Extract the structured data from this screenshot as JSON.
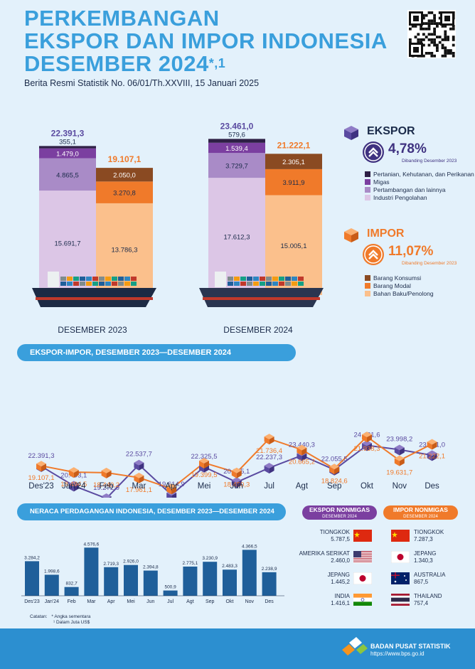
{
  "header": {
    "title_line1": "PERKEMBANGAN",
    "title_line2": "EKSPOR DAN IMPOR INDONESIA",
    "title_line3": "DESEMBER 2024",
    "title_sup": "*,1",
    "subtitle": "Berita Resmi Statistik No. 06/01/Th.XXVIII, 15 Januari 2025"
  },
  "ekspor_box": {
    "title": "EKSPOR",
    "pct": "4,78%",
    "note": "Dibanding Desember 2023",
    "legend": [
      {
        "label": "Pertanian, Kehutanan, dan Perikanan",
        "color": "#2e1f45"
      },
      {
        "label": "Migas",
        "color": "#7b3fa0"
      },
      {
        "label": "Pertambangan dan lainnya",
        "color": "#a98bc7"
      },
      {
        "label": "Industri Pengolahan",
        "color": "#dcc6e6"
      }
    ]
  },
  "impor_box": {
    "title": "IMPOR",
    "pct": "11,07%",
    "note": "Dibanding Desember 2023",
    "legend": [
      {
        "label": "Barang Konsumsi",
        "color": "#8a4a22"
      },
      {
        "label": "Barang Modal",
        "color": "#f07a2a"
      },
      {
        "label": "Bahan Baku/Penolong",
        "color": "#fbc08c"
      }
    ]
  },
  "chart_data": [
    {
      "type": "bar",
      "categories": [
        "DESEMBER 2023",
        "DESEMBER 2024"
      ],
      "stacked": true,
      "series_ekspor": [
        {
          "name": "Industri Pengolahan",
          "values": [
            15691.7,
            17612.3
          ],
          "labels": [
            "15.691,7",
            "17.612,3"
          ]
        },
        {
          "name": "Pertambangan dan lainnya",
          "values": [
            4865.5,
            3729.7
          ],
          "labels": [
            "4.865,5",
            "3.729,7"
          ]
        },
        {
          "name": "Migas",
          "values": [
            1479.0,
            1539.4
          ],
          "labels": [
            "1.479,0",
            "1.539,4"
          ]
        },
        {
          "name": "Pertanian, Kehutanan, dan Perikanan",
          "values": [
            355.1,
            579.6
          ],
          "labels": [
            "355,1",
            "579,6"
          ]
        }
      ],
      "series_impor": [
        {
          "name": "Bahan Baku/Penolong",
          "values": [
            13786.3,
            15005.1
          ],
          "labels": [
            "13.786,3",
            "15.005,1"
          ]
        },
        {
          "name": "Barang Modal",
          "values": [
            3270.8,
            3911.9
          ],
          "labels": [
            "3.270,8",
            "3.911,9"
          ]
        },
        {
          "name": "Barang Konsumsi",
          "values": [
            2050.0,
            2305.1
          ],
          "labels": [
            "2.050,0",
            "2.305,1"
          ]
        }
      ],
      "totals_ekspor": [
        "22.391,3",
        "23.461,0"
      ],
      "totals_impor": [
        "19.107,1",
        "21.222,1"
      ]
    },
    {
      "type": "line",
      "title": "EKSPOR-IMPOR, DESEMBER 2023—DESEMBER 2024",
      "categories": [
        "Des'23",
        "Jan'24",
        "Feb",
        "Mar",
        "Apr",
        "Mei",
        "Jun",
        "Jul",
        "Agt",
        "Sep",
        "Okt",
        "Nov",
        "Des"
      ],
      "series": [
        {
          "name": "Ekspor",
          "color": "#5a4aa0",
          "values": [
            22391.3,
            20493.1,
            19272.9,
            22537.7,
            19614.9,
            22325.5,
            20845.1,
            22237.3,
            23440.3,
            22055.5,
            24421.6,
            23998.2,
            23461.0
          ],
          "labels": [
            "22.391,3",
            "20.493,1",
            "19.272,9",
            "22.537,7",
            "19.614,9",
            "22.325,5",
            "20.845,1",
            "22.237,3",
            "23.440,3",
            "22.055,5",
            "24.421,6",
            "23.998,2",
            "23.461,0"
          ]
        },
        {
          "name": "Impor",
          "color": "#f07a2a",
          "values": [
            19107.1,
            18494.5,
            18440.2,
            17961.1,
            16895.6,
            19399.5,
            18450.3,
            21736.4,
            20665.2,
            18824.6,
            21938.3,
            19631.7,
            21222.1
          ],
          "labels": [
            "19.107,1",
            "18.494,5",
            "18.440,2",
            "17.961,1",
            "16.895,6",
            "19.399,5",
            "18.450,3",
            "21.736,4",
            "20.665,2",
            "18.824,6",
            "21.938,3",
            "19.631,7",
            "21.222,1"
          ]
        }
      ]
    },
    {
      "type": "bar",
      "title": "NERACA PERDAGANGAN INDONESIA, DESEMBER 2023—DESEMBER 2024",
      "categories": [
        "Des'23",
        "Jan'24",
        "Feb",
        "Mar",
        "Apr",
        "Mei",
        "Jun",
        "Jul",
        "Agt",
        "Sep",
        "Okt",
        "Nov",
        "Des"
      ],
      "values": [
        3284.2,
        1998.6,
        832.7,
        4576.6,
        2719.3,
        2926.0,
        2394.8,
        500.9,
        2775.1,
        3230.9,
        2483.3,
        4366.5,
        2238.9
      ],
      "labels": [
        "3.284,2",
        "1.998,6",
        "832,7",
        "4.576,6",
        "2.719,3",
        "2.926,0",
        "2.394,8",
        "500,9",
        "2.775,1",
        "3.230,9",
        "2.483,3",
        "4.366,5",
        "2.238,9"
      ],
      "ylim": [
        0,
        5000
      ]
    }
  ],
  "nonmigas": {
    "ekspor_title": "EKSPOR NONMIGAS",
    "ekspor_sub": "DESEMBER 2024",
    "impor_title": "IMPOR NONMIGAS",
    "impor_sub": "DESEMBER 2024",
    "ekspor": [
      {
        "country": "TIONGKOK",
        "value": "5.787,5"
      },
      {
        "country": "AMERIKA SERIKAT",
        "value": "2.460,0"
      },
      {
        "country": "JEPANG",
        "value": "1.445,2"
      },
      {
        "country": "INDIA",
        "value": "1.416,1"
      }
    ],
    "impor": [
      {
        "country": "TIONGKOK",
        "value": "7.287,3"
      },
      {
        "country": "JEPANG",
        "value": "1.340,3"
      },
      {
        "country": "AUSTRALIA",
        "value": "867,5"
      },
      {
        "country": "THAILAND",
        "value": "757,4"
      }
    ]
  },
  "notes": {
    "label": "Catatan:",
    "n1": "* Angka sementara",
    "n2": "¹ Dalam Juta US$"
  },
  "footer": {
    "org": "BADAN PUSAT STATISTIK",
    "url": "https://www.bps.go.id"
  }
}
